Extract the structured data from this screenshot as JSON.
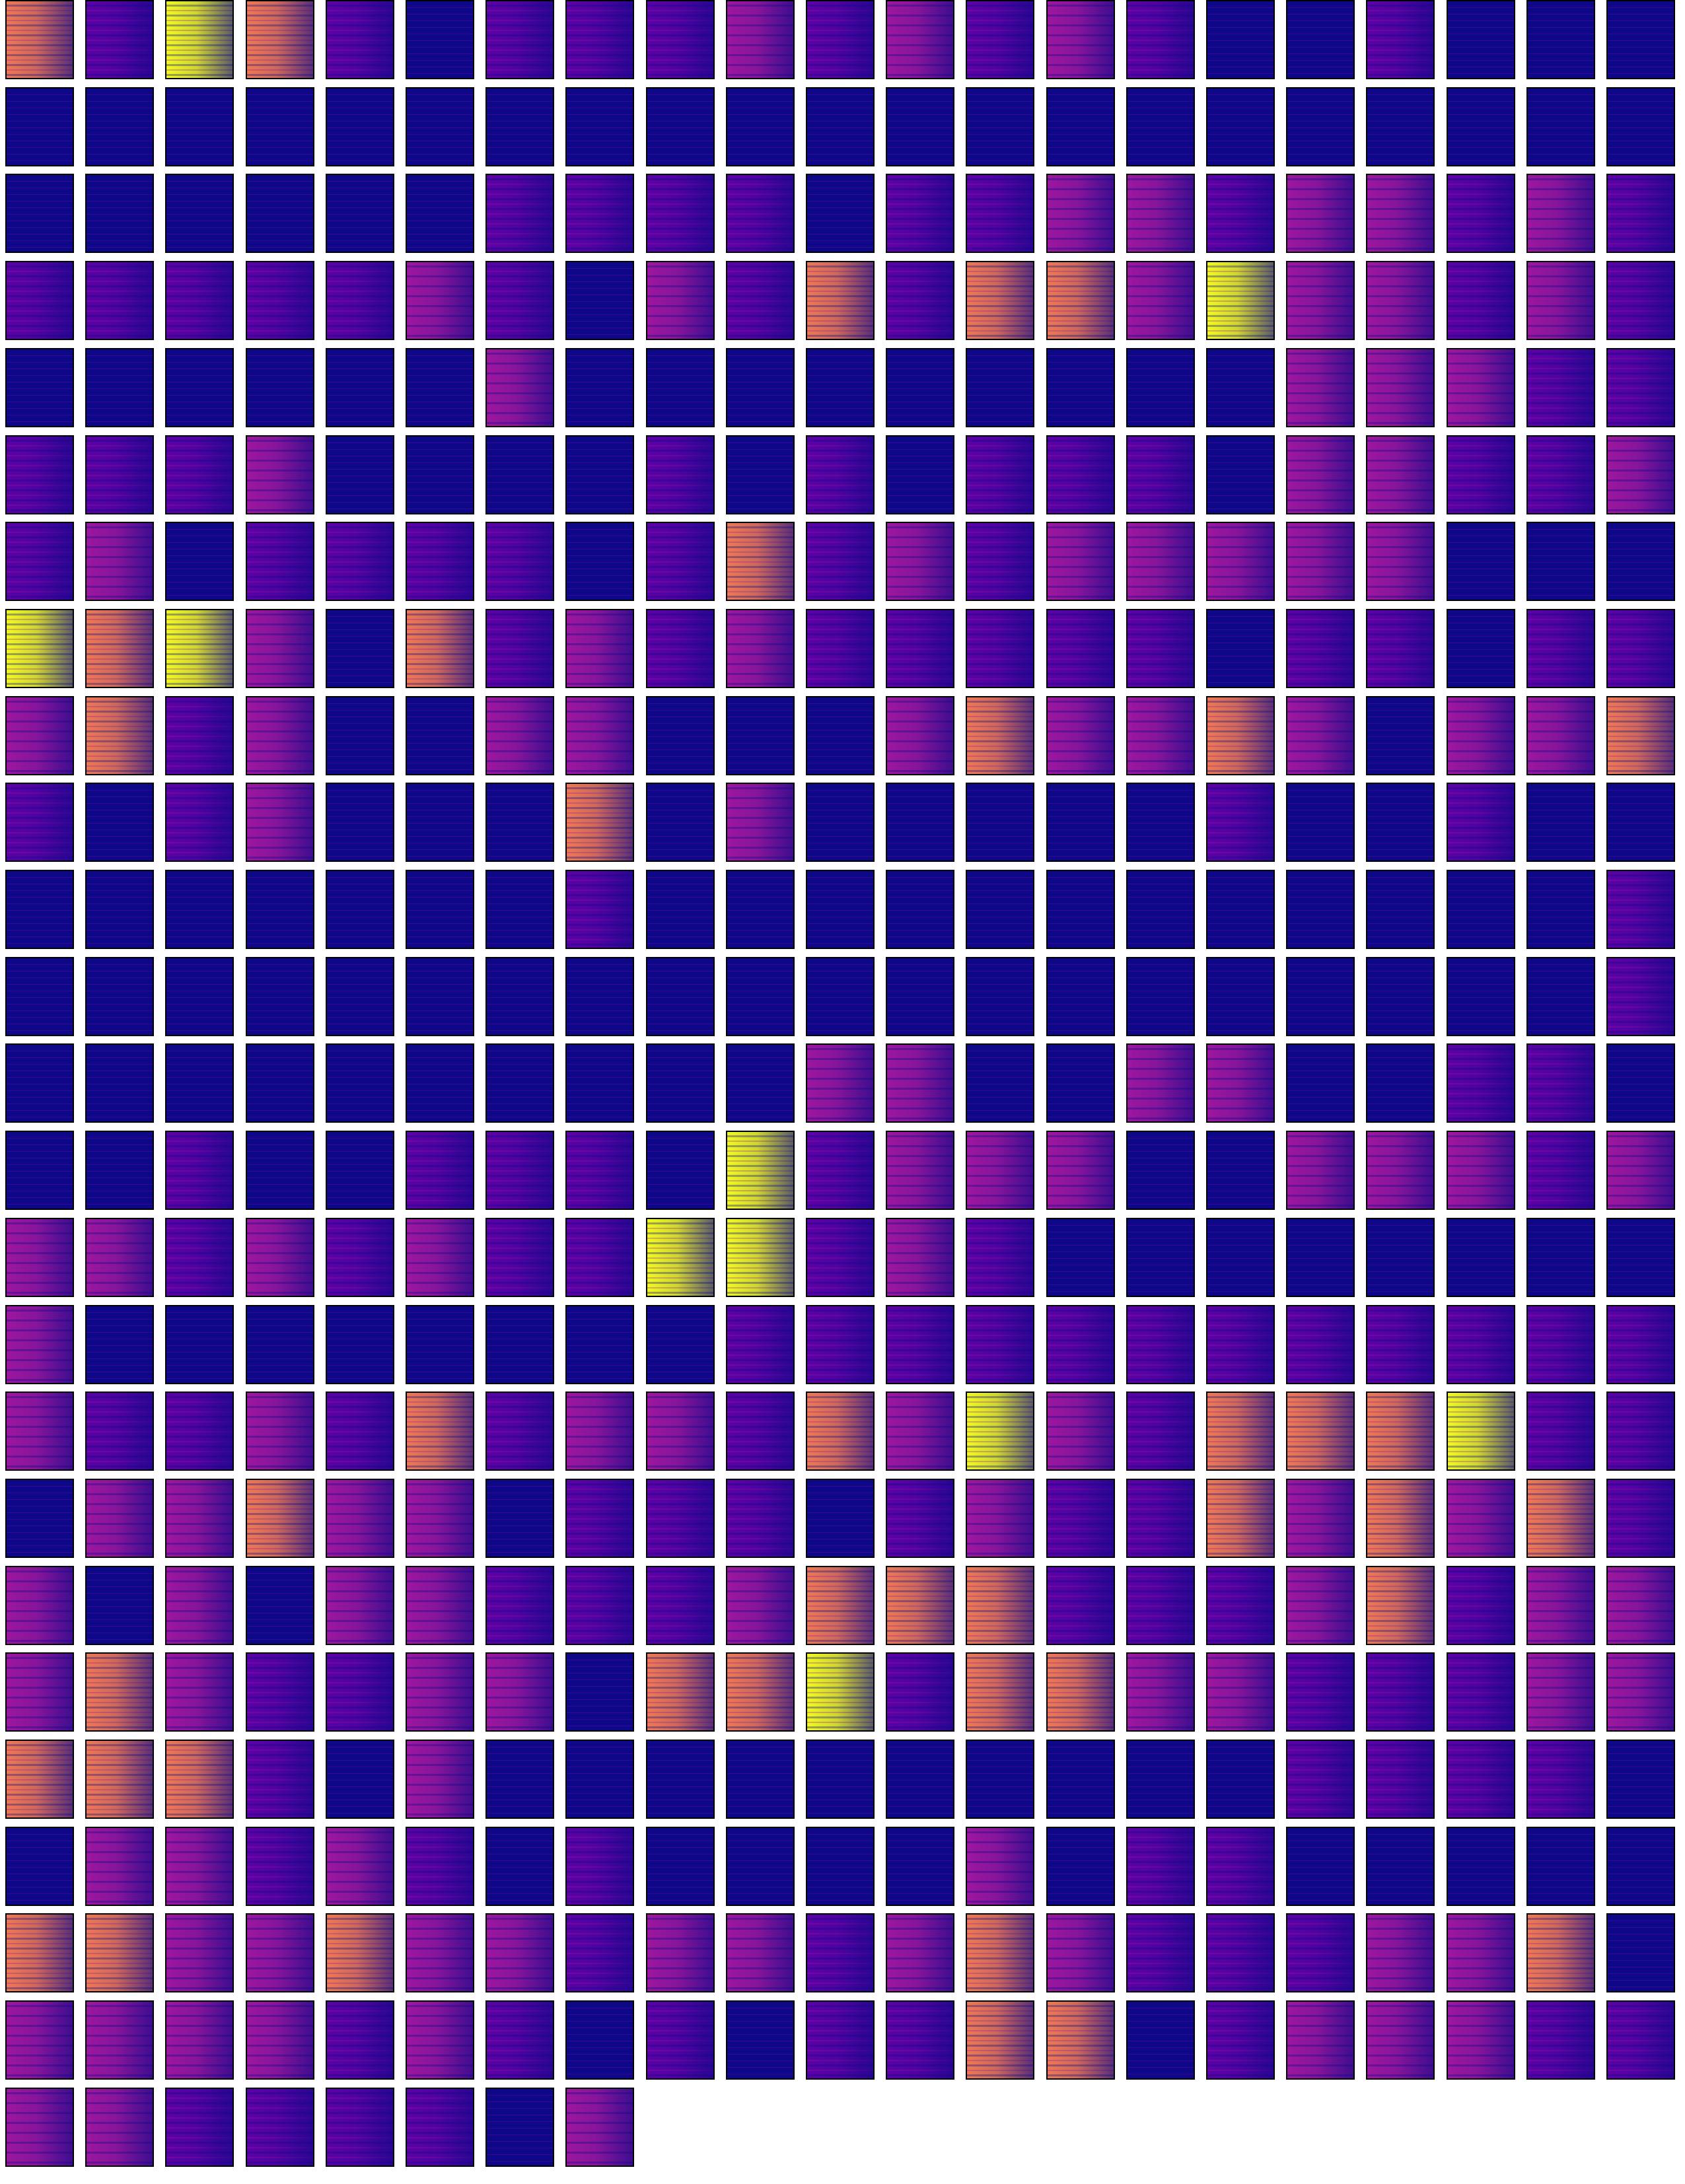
{
  "grid": {
    "levels": [
      "#0d0887",
      "#5c01a6",
      "#9c179e",
      "#ed7953",
      "#f0f921"
    ],
    "rows": [
      [
        3,
        1,
        4,
        3,
        1,
        0,
        1,
        1,
        1,
        2,
        1,
        2,
        1,
        2,
        1,
        0,
        0,
        1,
        0,
        0,
        0
      ],
      [
        0,
        0,
        0,
        0,
        0,
        0,
        0,
        0,
        0,
        0,
        0,
        0,
        0,
        0,
        0,
        0,
        0,
        0,
        0,
        0,
        0
      ],
      [
        0,
        0,
        0,
        0,
        0,
        0,
        1,
        1,
        1,
        1,
        0,
        1,
        1,
        2,
        2,
        1,
        2,
        2,
        1,
        2,
        1
      ],
      [
        1,
        1,
        1,
        1,
        1,
        2,
        1,
        0,
        2,
        1,
        3,
        1,
        3,
        3,
        2,
        4,
        2,
        2,
        1,
        2,
        1
      ],
      [
        0,
        0,
        0,
        0,
        0,
        0,
        2,
        0,
        0,
        0,
        0,
        0,
        0,
        0,
        0,
        0,
        2,
        2,
        2,
        1,
        1
      ],
      [
        1,
        1,
        1,
        2,
        0,
        0,
        0,
        0,
        1,
        0,
        1,
        0,
        1,
        1,
        1,
        0,
        2,
        2,
        1,
        1,
        2
      ],
      [
        1,
        2,
        0,
        1,
        1,
        1,
        1,
        0,
        1,
        3,
        1,
        2,
        1,
        2,
        2,
        2,
        2,
        2,
        0,
        0,
        0
      ],
      [
        4,
        3,
        4,
        2,
        0,
        3,
        1,
        2,
        1,
        2,
        1,
        1,
        1,
        1,
        1,
        0,
        1,
        1,
        0,
        1,
        1
      ],
      [
        2,
        3,
        1,
        2,
        0,
        0,
        2,
        2,
        0,
        0,
        0,
        2,
        3,
        2,
        2,
        3,
        2,
        0,
        2,
        2,
        3
      ],
      [
        1,
        0,
        1,
        2,
        0,
        0,
        0,
        3,
        0,
        2,
        0,
        0,
        0,
        0,
        0,
        1,
        0,
        0,
        1,
        0,
        0
      ],
      [
        0,
        0,
        0,
        0,
        0,
        0,
        0,
        1,
        0,
        0,
        0,
        0,
        0,
        0,
        0,
        0,
        0,
        0,
        0,
        0,
        1
      ],
      [
        0,
        0,
        0,
        0,
        0,
        0,
        0,
        0,
        0,
        0,
        0,
        0,
        0,
        0,
        0,
        0,
        0,
        0,
        0,
        0,
        1
      ],
      [
        0,
        0,
        0,
        0,
        0,
        0,
        0,
        0,
        0,
        0,
        2,
        2,
        0,
        0,
        2,
        2,
        0,
        0,
        1,
        1,
        0
      ],
      [
        0,
        0,
        1,
        0,
        0,
        1,
        1,
        1,
        0,
        4,
        1,
        2,
        2,
        2,
        0,
        0,
        2,
        2,
        2,
        1,
        2
      ],
      [
        2,
        2,
        1,
        2,
        1,
        2,
        1,
        1,
        4,
        4,
        1,
        2,
        1,
        0,
        0,
        0,
        0,
        0,
        0,
        0,
        0
      ],
      [
        2,
        0,
        0,
        0,
        0,
        0,
        0,
        0,
        0,
        1,
        1,
        1,
        1,
        1,
        1,
        1,
        1,
        1,
        1,
        1,
        1
      ],
      [
        2,
        1,
        1,
        2,
        1,
        3,
        1,
        2,
        2,
        1,
        3,
        2,
        4,
        2,
        1,
        3,
        3,
        3,
        4,
        1,
        1
      ],
      [
        0,
        2,
        2,
        3,
        2,
        2,
        0,
        1,
        1,
        1,
        0,
        1,
        2,
        1,
        1,
        3,
        2,
        3,
        2,
        3,
        1
      ],
      [
        2,
        0,
        2,
        0,
        2,
        2,
        1,
        1,
        1,
        2,
        3,
        3,
        3,
        1,
        1,
        1,
        2,
        3,
        1,
        2,
        2
      ],
      [
        2,
        3,
        2,
        1,
        1,
        2,
        2,
        0,
        3,
        3,
        4,
        1,
        3,
        3,
        2,
        2,
        1,
        1,
        1,
        2,
        2
      ],
      [
        3,
        3,
        3,
        1,
        0,
        2,
        0,
        0,
        0,
        0,
        0,
        0,
        0,
        0,
        0,
        0,
        1,
        1,
        1,
        1,
        0
      ],
      [
        0,
        2,
        2,
        1,
        2,
        1,
        0,
        1,
        0,
        0,
        0,
        0,
        2,
        0,
        1,
        1,
        0,
        0,
        0,
        0,
        0
      ],
      [
        3,
        3,
        2,
        2,
        3,
        2,
        2,
        1,
        2,
        2,
        1,
        2,
        3,
        2,
        1,
        1,
        1,
        2,
        2,
        3,
        0
      ],
      [
        2,
        2,
        2,
        2,
        1,
        2,
        1,
        0,
        1,
        0,
        1,
        1,
        3,
        3,
        0,
        1,
        2,
        2,
        2,
        1,
        1
      ],
      [
        2,
        2,
        1,
        1,
        1,
        1,
        0,
        2
      ]
    ]
  }
}
